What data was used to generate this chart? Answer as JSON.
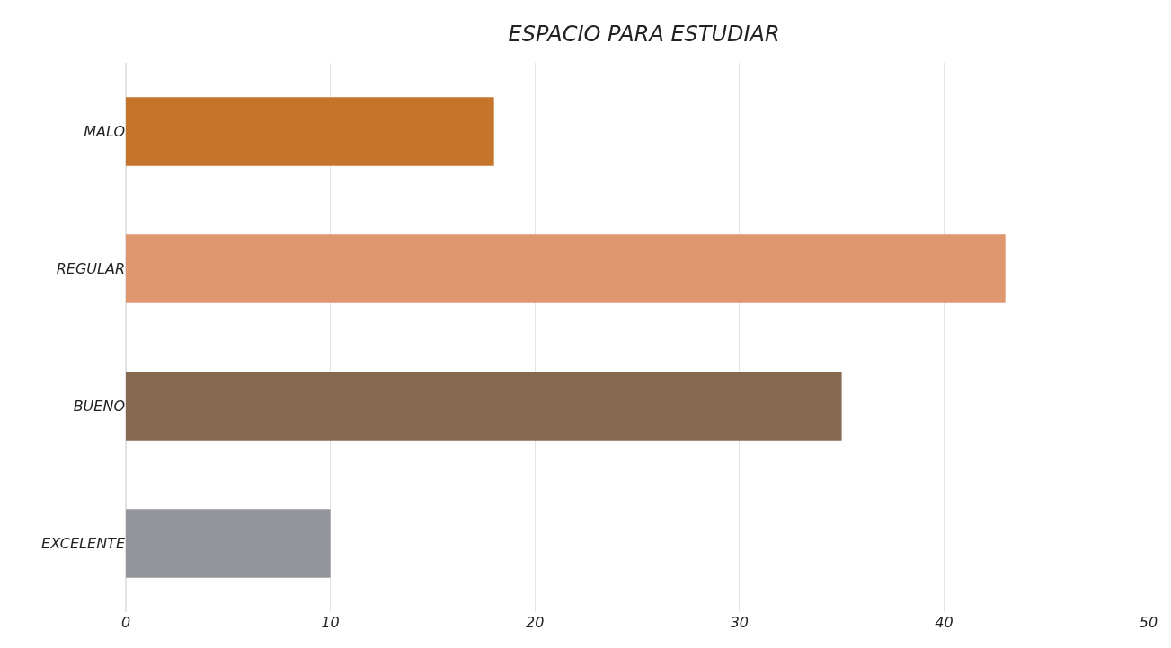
{
  "chart_data": {
    "type": "bar",
    "title": "ESPACIO PARA ESTUDIAR",
    "orientation": "horizontal",
    "categories": [
      "MALO",
      "REGULAR",
      "BUENO",
      "EXCELENTE"
    ],
    "values": [
      18,
      43,
      35,
      10
    ],
    "colors": [
      "#c5752b",
      "#df9770",
      "#856a51",
      "#94959b"
    ],
    "xlim": [
      0,
      50
    ],
    "xticks": [
      0,
      10,
      20,
      30,
      40,
      50
    ],
    "grid": "x",
    "legend": false
  }
}
